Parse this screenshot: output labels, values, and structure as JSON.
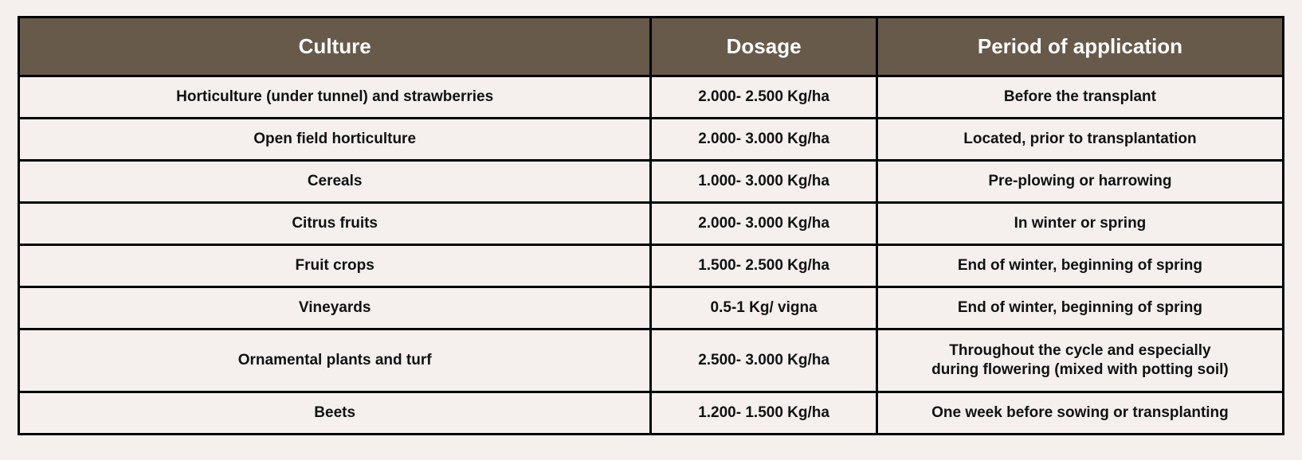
{
  "table": {
    "headers": [
      "Culture",
      "Dosage",
      "Period of application"
    ],
    "rows": [
      [
        "Horticulture (under tunnel) and strawberries",
        "2.000- 2.500 Kg/ha",
        "Before the transplant"
      ],
      [
        "Open field horticulture",
        "2.000- 3.000 Kg/ha",
        "Located, prior to transplantation"
      ],
      [
        "Cereals",
        "1.000- 3.000 Kg/ha",
        "Pre-plowing or harrowing"
      ],
      [
        "Citrus fruits",
        "2.000- 3.000 Kg/ha",
        "In winter or spring"
      ],
      [
        "Fruit crops",
        "1.500- 2.500 Kg/ha",
        "End of winter, beginning of spring"
      ],
      [
        "Vineyards",
        "0.5-1 Kg/ vigna",
        "End of winter, beginning of spring"
      ],
      [
        "Ornamental plants and turf",
        "2.500- 3.000 Kg/ha",
        "Throughout the cycle and especially\nduring flowering (mixed with potting soil)"
      ],
      [
        "Beets",
        "1.200- 1.500 Kg/ha",
        "One week before sowing or transplanting"
      ]
    ]
  },
  "colors": {
    "header_bg": "#675a4a",
    "header_text": "#ffffff",
    "page_bg": "#f5f0ed",
    "border": "#000000"
  }
}
